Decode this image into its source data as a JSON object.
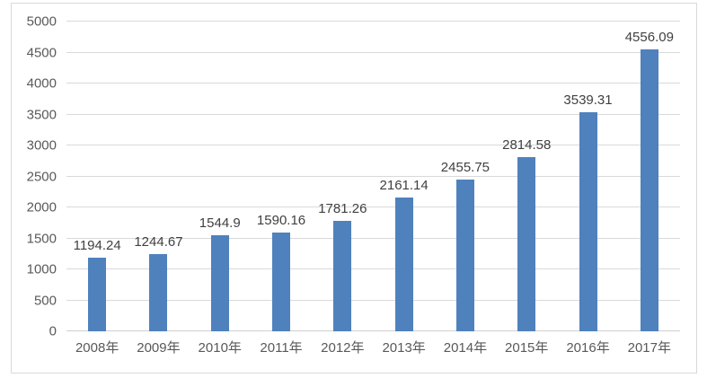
{
  "chart_data": {
    "type": "bar",
    "title": "",
    "xlabel": "",
    "ylabel": "",
    "categories": [
      "2008年",
      "2009年",
      "2010年",
      "2011年",
      "2012年",
      "2013年",
      "2014年",
      "2015年",
      "2016年",
      "2017年"
    ],
    "values": [
      1194.24,
      1244.67,
      1544.9,
      1590.16,
      1781.26,
      2161.14,
      2455.75,
      2814.58,
      3539.31,
      4556.09
    ],
    "data_labels": [
      "1194.24",
      "1244.67",
      "1544.9",
      "1590.16",
      "1781.26",
      "2161.14",
      "2455.75",
      "2814.58",
      "3539.31",
      "4556.09"
    ],
    "ylim": [
      0,
      5000
    ],
    "ytick_step": 500,
    "yticks": [
      0,
      500,
      1000,
      1500,
      2000,
      2500,
      3000,
      3500,
      4000,
      4500,
      5000
    ],
    "grid": true,
    "legend": false
  },
  "style": {
    "bar_color": "#4f81bd",
    "gridline_color": "#d9d9d9",
    "axis_label_color": "#595959",
    "data_label_color": "#404040",
    "frame_border_color": "#d9d9d9",
    "background_color": "#ffffff"
  }
}
